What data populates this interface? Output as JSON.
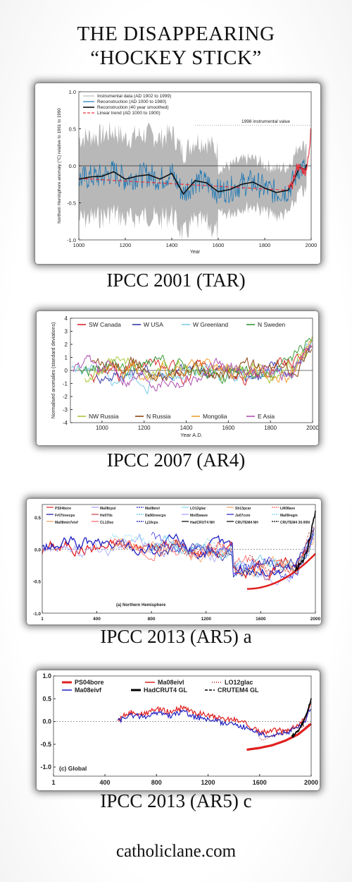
{
  "header": {
    "line1": "THE DISAPPEARING",
    "line2": "“HOCKEY STICK”"
  },
  "footer": {
    "site": "catholiclane.com"
  },
  "colors": {
    "instrumental": "#e8323c",
    "reconstruction": "#1f78b4",
    "smoothed": "#111111",
    "trend": "#e8323c",
    "band": "#b8b8b8"
  },
  "chart_data": [
    {
      "id": "tar",
      "caption": "IPCC 2001 (TAR)",
      "type": "line",
      "ylabel": "Northern Hemisphere anomaly (°C) relative to 1961 to 1990",
      "xlabel": "Year",
      "xlim": [
        1000,
        2000
      ],
      "ylim": [
        -1.0,
        1.0
      ],
      "xticks": [
        1000,
        1200,
        1400,
        1600,
        1800,
        2000
      ],
      "yticks": [
        "-1.0",
        "-0.5",
        "0.0",
        "0.5",
        "1.0"
      ],
      "legend": [
        "Instrumental data (AD 1902 to 1999)",
        "Reconstruction (AD 1000 to 1980)",
        "Reconstruction (40 year smoothed)",
        "Linear trend (AD 1000 to 1900)"
      ],
      "annotation": "1998 instrumental value",
      "series": [
        {
          "name": "Reconstruction (40 year smoothed)",
          "x": [
            1000,
            1050,
            1100,
            1150,
            1200,
            1250,
            1300,
            1350,
            1400,
            1450,
            1500,
            1550,
            1600,
            1650,
            1700,
            1750,
            1800,
            1850,
            1900,
            1925,
            1950,
            1975,
            1980
          ],
          "y": [
            -0.18,
            -0.15,
            -0.14,
            -0.08,
            -0.18,
            -0.14,
            -0.12,
            -0.18,
            -0.1,
            -0.38,
            -0.2,
            -0.23,
            -0.35,
            -0.32,
            -0.25,
            -0.22,
            -0.3,
            -0.36,
            -0.33,
            -0.2,
            -0.02,
            -0.05,
            0.02
          ]
        },
        {
          "name": "Instrumental data (AD 1902 to 1999)",
          "x": [
            1902,
            1920,
            1940,
            1960,
            1975,
            1985,
            1990,
            1995,
            1998
          ],
          "y": [
            -0.32,
            -0.25,
            0.0,
            -0.05,
            -0.08,
            0.05,
            0.15,
            0.3,
            0.55
          ]
        },
        {
          "name": "Linear trend (AD 1000 to 1900)",
          "x": [
            1000,
            1900
          ],
          "y": [
            -0.17,
            -0.33
          ]
        }
      ]
    },
    {
      "id": "ar4",
      "caption": "IPCC 2007 (AR4)",
      "type": "line",
      "ylabel": "Normalised anomalies (standard deviations)",
      "xlabel": "Year A.D.",
      "xlim": [
        850,
        2000
      ],
      "ylim": [
        -4,
        4
      ],
      "xticks": [
        1000,
        1200,
        1400,
        1600,
        1800,
        2000
      ],
      "yticks": [
        "-4",
        "-3",
        "-2",
        "-1",
        "0",
        "1",
        "2",
        "3",
        "4"
      ],
      "legend_top": [
        {
          "name": "SW Canada",
          "color": "#d62728"
        },
        {
          "name": "W USA",
          "color": "#3a3aa8"
        },
        {
          "name": "W Greenland",
          "color": "#7ecbe8"
        },
        {
          "name": "N Sweden",
          "color": "#3a9a3a"
        }
      ],
      "legend_bottom": [
        {
          "name": "NW Russia",
          "color": "#a8c83a"
        },
        {
          "name": "N Russia",
          "color": "#8b4513"
        },
        {
          "name": "Mongolia",
          "color": "#f0a030"
        },
        {
          "name": "E Asia",
          "color": "#b050b0"
        }
      ]
    },
    {
      "id": "ar5a",
      "caption": "IPCC 2013 (AR5) a",
      "type": "line",
      "xlim": [
        1,
        2000
      ],
      "ylim": [
        -1.0,
        1.0
      ],
      "xticks": [
        "1",
        "400",
        "800",
        "1200",
        "1600",
        "2000"
      ],
      "yticks": [
        "-1.0",
        "-0.5",
        "0.0",
        "0.5"
      ],
      "panel_label": "(a) Northern Hemisphere",
      "legend": [
        "PS04bore",
        "Ma08cpsl",
        "Ma08eivl",
        "LO12glac",
        "Sh13pcar",
        "LM08ave",
        "Fr07treecps",
        "He07tls",
        "Da06treecps",
        "Mo05wave",
        "Ju07cvm",
        "Ma09regm",
        "Ma08min7eivf",
        "CL12loc",
        "Lj10cps",
        "HadCRUT4 NH",
        "CRUTEM4 NH",
        "CRUTEM4 30-90N"
      ]
    },
    {
      "id": "ar5c",
      "caption": "IPCC 2013 (AR5) c",
      "type": "line",
      "xlim": [
        1,
        2000
      ],
      "ylim": [
        -1.0,
        1.0
      ],
      "xticks": [
        "1",
        "400",
        "800",
        "1200",
        "1600",
        "2000"
      ],
      "yticks": [
        "1.0",
        "0.5",
        "0.0",
        "-0.5",
        "-1.0"
      ],
      "panel_label": "(c) Global",
      "legend": [
        {
          "name": "PS04bore",
          "color": "#e02020",
          "style": "thick"
        },
        {
          "name": "Ma08eivl",
          "color": "#e02020",
          "style": "solid"
        },
        {
          "name": "LO12glac",
          "color": "#c01010",
          "style": "dotted"
        },
        {
          "name": "Ma08eivf",
          "color": "#2020c0",
          "style": "solid"
        },
        {
          "name": "HadCRUT4 GL",
          "color": "#000000",
          "style": "thick"
        },
        {
          "name": "CRUTEM4 GL",
          "color": "#000000",
          "style": "dashed"
        }
      ],
      "series": [
        {
          "name": "Ma08eivl",
          "x": [
            500,
            600,
            700,
            800,
            900,
            1000,
            1100,
            1200,
            1300,
            1400,
            1500,
            1600,
            1700,
            1800,
            1900,
            1950,
            2000
          ],
          "y": [
            0.05,
            0.2,
            0.15,
            0.28,
            0.2,
            0.3,
            0.18,
            0.15,
            0.05,
            0.05,
            -0.05,
            -0.25,
            -0.2,
            -0.2,
            -0.05,
            0.05,
            0.4
          ]
        },
        {
          "name": "Ma08eivf",
          "x": [
            500,
            600,
            700,
            800,
            900,
            1000,
            1100,
            1200,
            1300,
            1400,
            1500,
            1600,
            1700,
            1800,
            1900,
            1950,
            2000
          ],
          "y": [
            0.0,
            0.15,
            0.1,
            0.2,
            0.12,
            0.22,
            0.1,
            0.05,
            -0.02,
            -0.05,
            -0.15,
            -0.3,
            -0.28,
            -0.25,
            -0.12,
            0.0,
            0.35
          ]
        },
        {
          "name": "PS04bore",
          "x": [
            1500,
            1600,
            1700,
            1800,
            1900,
            2000
          ],
          "y": [
            -0.62,
            -0.58,
            -0.52,
            -0.42,
            -0.28,
            -0.05
          ]
        }
      ]
    }
  ]
}
